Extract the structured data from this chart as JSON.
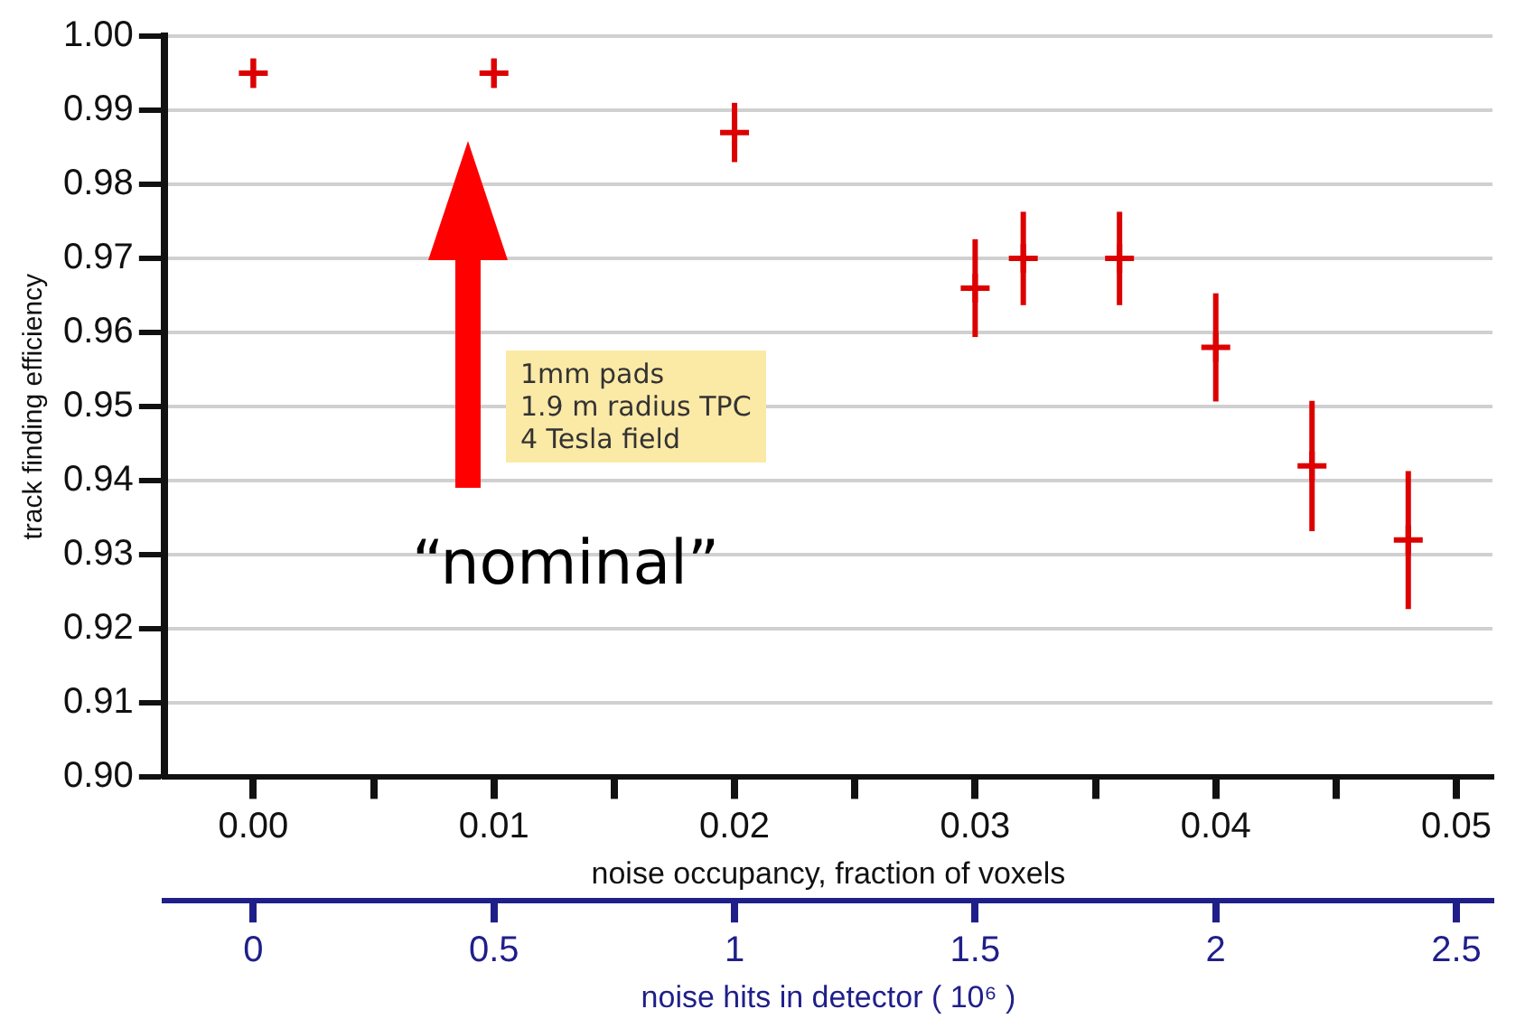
{
  "chart_data": {
    "type": "scatter",
    "xlabel": "noise occupancy, fraction of voxels",
    "ylabel": "track finding efficiency",
    "x2label": "noise hits in detector ( 10⁶ )",
    "x": [
      0.0,
      0.01,
      0.02,
      0.03,
      0.032,
      0.036,
      0.04,
      0.044,
      0.048
    ],
    "series": [
      {
        "color": "#dd0000",
        "values": [
          0.995,
          0.995,
          0.987,
          0.966,
          0.97,
          0.97,
          0.958,
          0.942,
          0.932
        ],
        "errors": [
          0.002,
          0.002,
          0.004,
          0.0066,
          0.0063,
          0.0063,
          0.0073,
          0.0088,
          0.0093
        ]
      }
    ],
    "marker": "cross",
    "xlim": [
      -0.0037,
      0.0515
    ],
    "xticks": [
      {
        "value": 0,
        "label": "0.00"
      },
      {
        "value": 0.005,
        "label": null
      },
      0.01,
      {
        "value": 0.015,
        "label": null
      },
      0.02,
      {
        "value": 0.025,
        "label": null
      },
      0.03,
      {
        "value": 0.035,
        "label": null
      },
      0.04,
      {
        "value": 0.045,
        "label": null
      },
      0.05
    ],
    "x2lim": [
      -0.185,
      2.575
    ],
    "x2ticks": [
      0,
      0.5,
      1,
      1.5,
      2,
      2.5
    ],
    "ylim": [
      0.9,
      1.0
    ],
    "yticks": [
      {
        "value": 0.9,
        "label": "0.90"
      },
      0.91,
      0.92,
      0.93,
      0.94,
      0.95,
      0.96,
      0.97,
      0.98,
      0.99,
      {
        "value": 1,
        "label": "1.00"
      }
    ],
    "grid": "y",
    "legend": false,
    "annotations": [
      "1mm pads\n1.9 m radius TPC\n4 Tesla field",
      "“nominal”"
    ]
  }
}
